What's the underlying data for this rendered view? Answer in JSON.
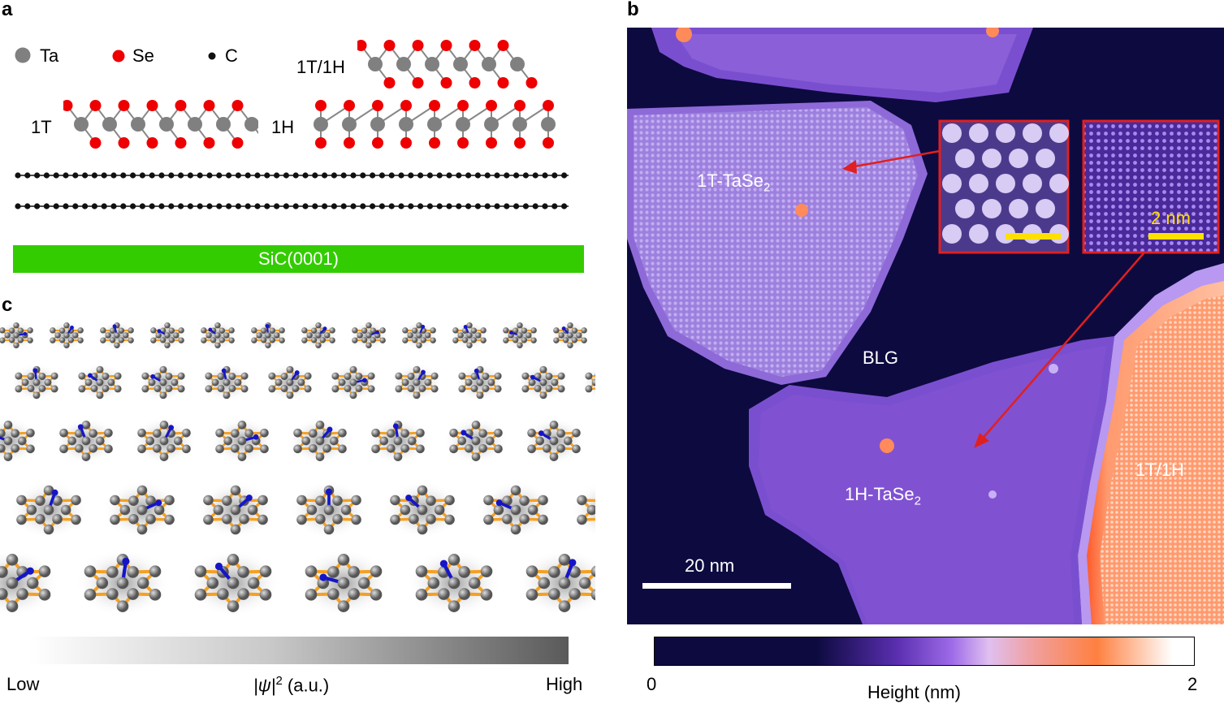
{
  "panels": {
    "a": "a",
    "b": "b",
    "c": "c"
  },
  "legend": {
    "ta": "Ta",
    "se": "Se",
    "c": "C"
  },
  "structures": {
    "t": "1T",
    "h": "1H",
    "th": "1T/1H"
  },
  "substrate": "SiC(0001)",
  "stm": {
    "t_label_main": "1T-TaSe",
    "t_label_sub": "2",
    "h_label_main": "1H-TaSe",
    "h_label_sub": "2",
    "blg": "BLG",
    "th": "1T/1H",
    "scale_main": "20 nm",
    "scale_inset": "2 nm"
  },
  "colorbar_c": {
    "low": "Low",
    "quantity": "|ψ|",
    "sup": "2",
    "unit": " (a.u.)",
    "high": "High"
  },
  "colorbar_b": {
    "min": "0",
    "label": "Height (nm)",
    "max": "2"
  },
  "colors": {
    "ta": "#808080",
    "se": "#ee0000",
    "carbon": "#111111",
    "sic": "#33cc00",
    "substrate_dark": "#0d0a40",
    "island_1t": "#a789e3",
    "island_1h": "#7a4fcf",
    "orange": "#ff8a5a",
    "bond": "#f5a023",
    "arrow": "#1515c8"
  }
}
